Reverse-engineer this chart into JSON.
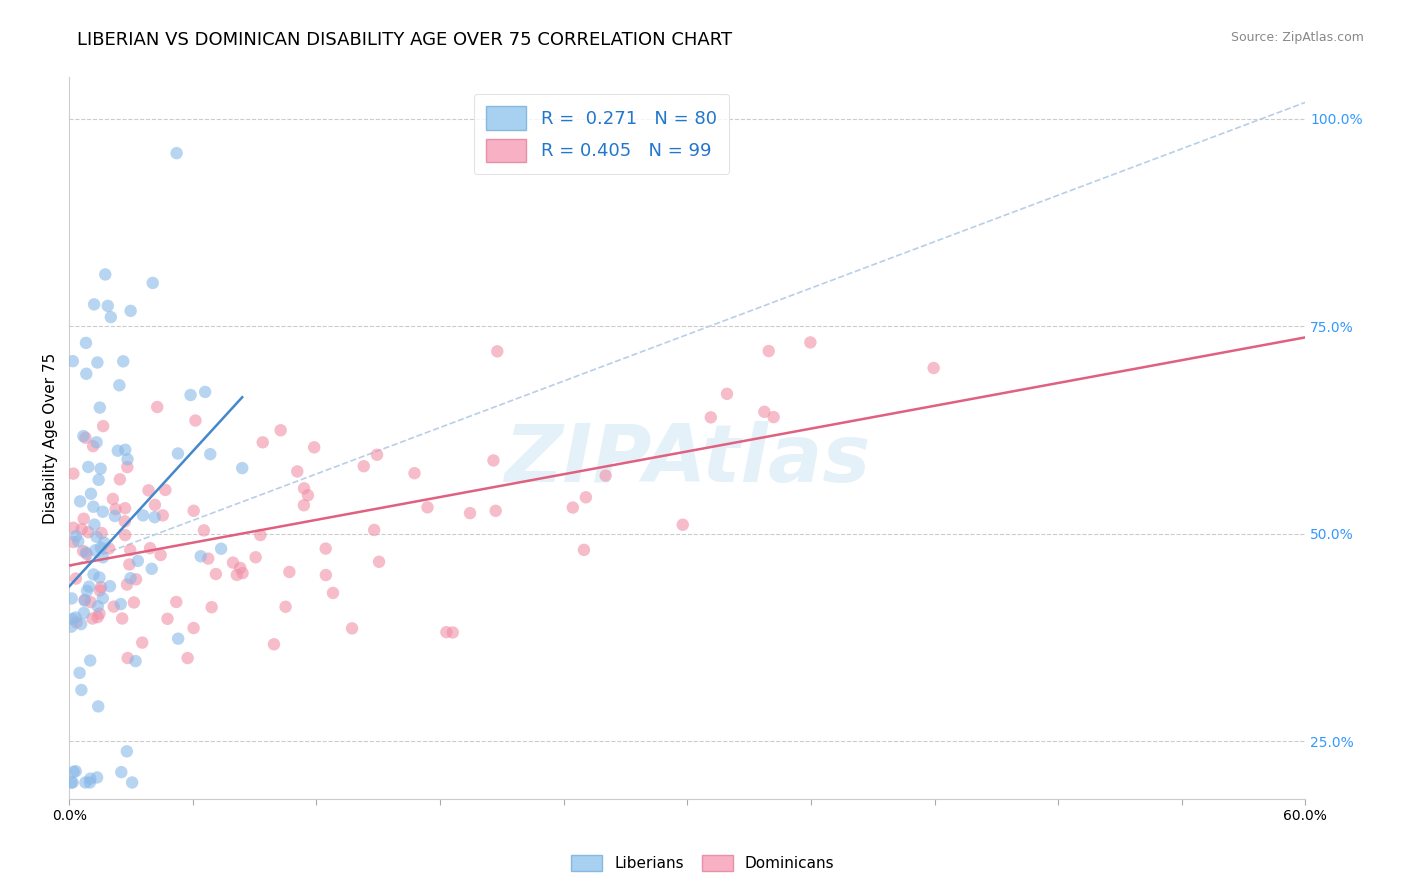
{
  "title": "LIBERIAN VS DOMINICAN DISABILITY AGE OVER 75 CORRELATION CHART",
  "source_text": "Source: ZipAtlas.com",
  "ylabel": "Disability Age Over 75",
  "xlim": [
    0.0,
    0.6
  ],
  "ylim": [
    0.18,
    1.05
  ],
  "xticks": [
    0.0,
    0.06,
    0.12,
    0.18,
    0.24,
    0.3,
    0.36,
    0.42,
    0.48,
    0.54,
    0.6
  ],
  "ytick_positions": [
    0.25,
    0.5,
    0.75,
    1.0
  ],
  "ytick_labels": [
    "25.0%",
    "50.0%",
    "75.0%",
    "100.0%"
  ],
  "liberian_color": "#88b8e8",
  "dominican_color": "#f090a8",
  "liberian_line_color": "#4488cc",
  "dominican_line_color": "#e06080",
  "reference_line_color": "#b8cfe8",
  "R_liberian": 0.271,
  "N_liberian": 80,
  "R_dominican": 0.405,
  "N_dominican": 99,
  "watermark_text": "ZIPAtlas",
  "background_color": "#ffffff",
  "title_fontsize": 13,
  "axis_label_fontsize": 11,
  "tick_fontsize": 10,
  "legend_fontsize": 13,
  "scatter_size": 80,
  "scatter_alpha": 0.6
}
